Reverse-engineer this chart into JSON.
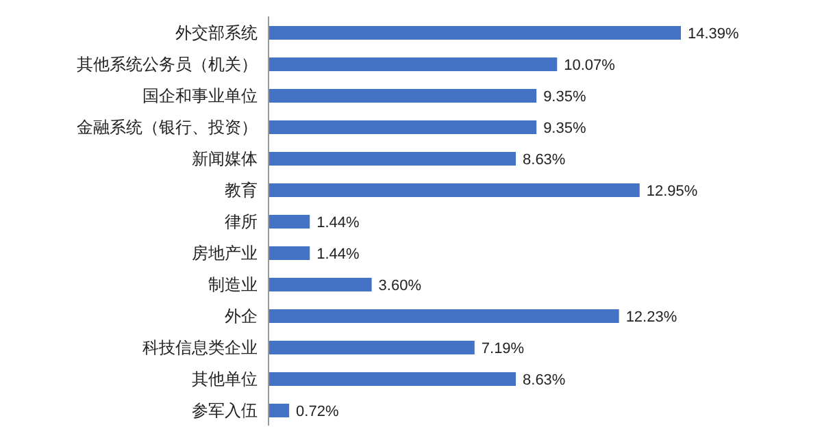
{
  "chart_data": {
    "type": "bar",
    "orientation": "horizontal",
    "categories": [
      "外交部系统",
      "其他系统公务员（机关）",
      "国企和事业单位",
      "金融系统（银行、投资）",
      "新闻媒体",
      "教育",
      "律所",
      "房地产业",
      "制造业",
      "外企",
      "科技信息类企业",
      "其他单位",
      "参军入伍"
    ],
    "values": [
      14.39,
      10.07,
      9.35,
      9.35,
      8.63,
      12.95,
      1.44,
      1.44,
      3.6,
      12.23,
      7.19,
      8.63,
      0.72
    ],
    "value_labels": [
      "14.39%",
      "10.07%",
      "9.35%",
      "9.35%",
      "8.63%",
      "12.95%",
      "1.44%",
      "1.44%",
      "3.60%",
      "12.23%",
      "7.19%",
      "8.63%",
      "0.72%"
    ],
    "color": "#4472c4"
  }
}
